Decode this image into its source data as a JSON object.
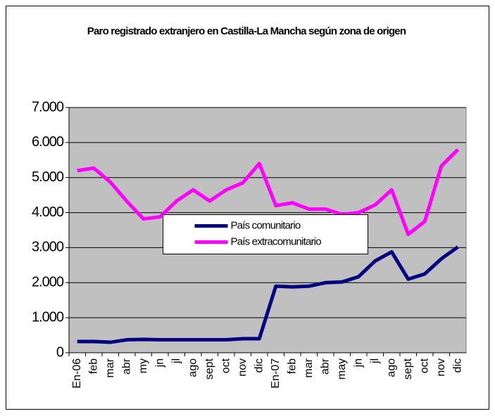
{
  "chart_data": {
    "type": "line",
    "title": "Paro registrado extranjero en Castilla-La Mancha según zona de origen",
    "categories": [
      "En-06",
      "feb",
      "mar",
      "abr",
      "my",
      "jn",
      "jl",
      "ago",
      "sept",
      "oct",
      "nov",
      "dic",
      "En-07",
      "feb",
      "mar",
      "abr",
      "may",
      "jn",
      "jl",
      "ago",
      "sept",
      "oct",
      "nov",
      "dic"
    ],
    "series": [
      {
        "name": "País comunitario",
        "color": "#000080",
        "values": [
          320,
          320,
          300,
          370,
          380,
          370,
          370,
          370,
          370,
          370,
          400,
          400,
          1900,
          1880,
          1900,
          2000,
          2020,
          2170,
          2620,
          2880,
          2100,
          2250,
          2680,
          3020
        ]
      },
      {
        "name": "País extracomunitario",
        "color": "#ff00ff",
        "values": [
          5200,
          5270,
          4870,
          4320,
          3820,
          3880,
          4330,
          4650,
          4330,
          4650,
          4850,
          5400,
          4200,
          4280,
          4100,
          4100,
          3950,
          4000,
          4220,
          4650,
          3380,
          3750,
          5330,
          5800
        ]
      }
    ],
    "ylim": [
      0,
      7000
    ],
    "yticks": [
      0,
      {
        "value": 1000,
        "label": "1.000"
      },
      {
        "value": 2000,
        "label": "2.000"
      },
      {
        "value": 3000,
        "label": "3.000"
      },
      {
        "value": 4000,
        "label": "4.000"
      },
      {
        "value": 5000,
        "label": "5.000"
      },
      {
        "value": 6000,
        "label": "6.000"
      },
      {
        "value": 7000,
        "label": "7.000"
      }
    ],
    "grid": true,
    "legend_position": "center",
    "plot_background": "#c0c0c0"
  }
}
